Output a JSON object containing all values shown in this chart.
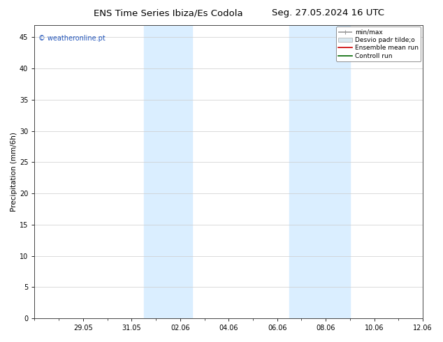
{
  "title_left": "ENS Time Series Ibiza/Es Codola",
  "title_right": "Seg. 27.05.2024 16 UTC",
  "ylabel": "Precipitation (mm/6h)",
  "ylim": [
    0,
    47
  ],
  "yticks": [
    0,
    5,
    10,
    15,
    20,
    25,
    30,
    35,
    40,
    45
  ],
  "xtick_labels": [
    "29.05",
    "31.05",
    "02.06",
    "04.06",
    "06.06",
    "08.06",
    "10.06",
    "12.06"
  ],
  "xlim": [
    0,
    16
  ],
  "xtick_positions": [
    2,
    4,
    6,
    8,
    10,
    12,
    14,
    16
  ],
  "shaded_regions": [
    {
      "x_start": 4.5,
      "x_end": 6.5,
      "color": "#daeeff"
    },
    {
      "x_start": 10.5,
      "x_end": 13.0,
      "color": "#daeeff"
    }
  ],
  "legend_entries": [
    {
      "label": "min/max",
      "color": "#999999",
      "lw": 1.2
    },
    {
      "label": "Desvio padr tilde;o",
      "facecolor": "#d8e8f0",
      "edgecolor": "#aaaaaa"
    },
    {
      "label": "Ensemble mean run",
      "color": "#cc0000",
      "lw": 1.2
    },
    {
      "label": "Controll run",
      "color": "#006600",
      "lw": 1.2
    }
  ],
  "watermark": "© weatheronline.pt",
  "watermark_color": "#2255bb",
  "background_color": "#ffffff",
  "plot_bg_color": "#ffffff",
  "title_fontsize": 9.5,
  "tick_fontsize": 7,
  "ylabel_fontsize": 7.5,
  "legend_fontsize": 6.5
}
